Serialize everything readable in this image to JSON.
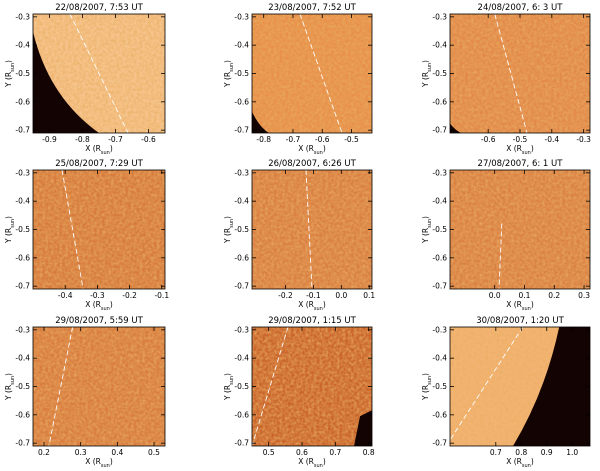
{
  "chart_data": [
    {
      "type": "image",
      "title": "22/08/2007,  7:53 UT",
      "xlabel": [
        "X (R",
        "sun",
        ")"
      ],
      "ylabel": [
        "Y (R",
        "sun",
        ")"
      ],
      "xlim": [
        -0.95,
        -0.55
      ],
      "ylim": [
        -0.71,
        -0.29
      ],
      "xticks": [
        -0.9,
        -0.8,
        -0.7,
        -0.6
      ],
      "yticks": [
        -0.7,
        -0.6,
        -0.5,
        -0.4,
        -0.3
      ]
    },
    {
      "type": "image",
      "title": "23/08/2007,  7:52 UT",
      "xlabel": [
        "X (R",
        "sun",
        ")"
      ],
      "ylabel": [
        "Y (R",
        "sun",
        ")"
      ],
      "xlim": [
        -0.84,
        -0.43
      ],
      "ylim": [
        -0.71,
        -0.29
      ],
      "xticks": [
        -0.8,
        -0.7,
        -0.6,
        -0.5
      ],
      "yticks": [
        -0.7,
        -0.6,
        -0.5,
        -0.4,
        -0.3
      ]
    },
    {
      "type": "image",
      "title": "24/08/2007,  6: 3 UT",
      "xlabel": [
        "X (R",
        "sun",
        ")"
      ],
      "ylabel": [
        "Y (R",
        "sun",
        ")"
      ],
      "xlim": [
        -0.72,
        -0.28
      ],
      "ylim": [
        -0.71,
        -0.29
      ],
      "xticks": [
        -0.6,
        -0.5,
        -0.4,
        -0.3
      ],
      "yticks": [
        -0.7,
        -0.6,
        -0.5,
        -0.4,
        -0.3
      ]
    },
    {
      "type": "image",
      "title": "25/08/2007,  7:29 UT",
      "xlabel": [
        "X (R",
        "sun",
        ")"
      ],
      "ylabel": [
        "Y (R",
        "sun",
        ")"
      ],
      "xlim": [
        -0.5,
        -0.09
      ],
      "ylim": [
        -0.71,
        -0.29
      ],
      "xticks": [
        -0.4,
        -0.3,
        -0.2,
        -0.1
      ],
      "yticks": [
        -0.7,
        -0.6,
        -0.5,
        -0.4,
        -0.3
      ]
    },
    {
      "type": "image",
      "title": "26/08/2007,  6:26 UT",
      "xlabel": [
        "X (R",
        "sun",
        ")"
      ],
      "ylabel": [
        "Y (R",
        "sun",
        ")"
      ],
      "xlim": [
        -0.32,
        0.11
      ],
      "ylim": [
        -0.71,
        -0.29
      ],
      "xticks": [
        -0.2,
        -0.1,
        {
          "value": 0,
          "label": "0.0"
        },
        0.1
      ],
      "yticks": [
        -0.7,
        -0.6,
        -0.5,
        -0.4,
        -0.3
      ]
    },
    {
      "type": "image",
      "title": "27/08/2007,  6: 1 UT",
      "xlabel": [
        "X (R",
        "sun",
        ")"
      ],
      "ylabel": [
        "Y (R",
        "sun",
        ")"
      ],
      "xlim": [
        -0.15,
        0.32
      ],
      "ylim": [
        -0.71,
        -0.29
      ],
      "xticks": [
        {
          "value": 0,
          "label": "0.0"
        },
        0.1,
        0.2,
        0.3
      ],
      "yticks": [
        -0.7,
        -0.6,
        -0.5,
        -0.4,
        -0.3
      ]
    },
    {
      "type": "image",
      "title": "29/08/2007,  5:59 UT",
      "xlabel": [
        "X (R",
        "sun",
        ")"
      ],
      "ylabel": [
        "Y (R",
        "sun",
        ")"
      ],
      "xlim": [
        0.17,
        0.53
      ],
      "ylim": [
        -0.71,
        -0.29
      ],
      "xticks": [
        0.2,
        0.3,
        0.4,
        0.5
      ],
      "yticks": [
        -0.7,
        -0.6,
        -0.5,
        -0.4,
        -0.3
      ]
    },
    {
      "type": "image",
      "title": "29/08/2007,  1:15 UT",
      "xlabel": [
        "X (R",
        "sun",
        ")"
      ],
      "ylabel": [
        "Y (R",
        "sun",
        ")"
      ],
      "xlim": [
        0.45,
        0.81
      ],
      "ylim": [
        -0.71,
        -0.29
      ],
      "xticks": [
        0.5,
        0.6,
        0.7,
        0.8
      ],
      "yticks": [
        -0.7,
        -0.6,
        -0.5,
        -0.4,
        -0.3
      ]
    },
    {
      "type": "image",
      "title": "30/08/2007,  1:20 UT",
      "xlabel": [
        "X (R",
        "sun",
        ")"
      ],
      "ylabel": [
        "Y (R",
        "sun",
        ")"
      ],
      "xlim": [
        0.52,
        1.07
      ],
      "ylim": [
        -0.71,
        -0.29
      ],
      "xticks": [
        0.7,
        0.8,
        0.9,
        {
          "value": 1,
          "label": "1.0"
        }
      ],
      "yticks": [
        -0.7,
        -0.6,
        -0.5,
        -0.4,
        -0.3
      ]
    }
  ]
}
